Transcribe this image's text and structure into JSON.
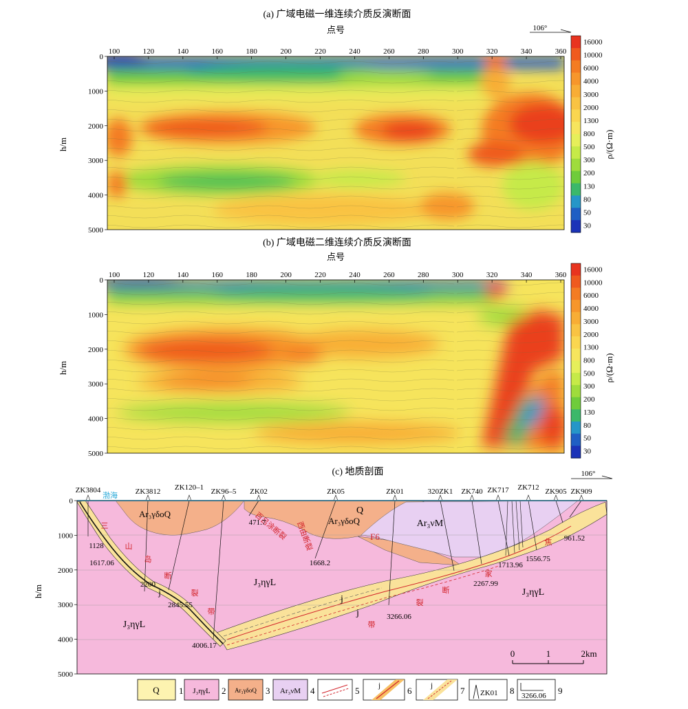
{
  "panel_a": {
    "title": "(a) 广域电磁一维连续介质反演断面",
    "xlabel": "点号",
    "orientation": "106°"
  },
  "panel_b": {
    "title": "(b) 广域电磁二维连续介质反演断面",
    "xlabel": "点号"
  },
  "panel_c": {
    "title": "(c) 地质剖面",
    "orientation": "106°",
    "scale": {
      "ticks": [
        "0",
        "1",
        "2km"
      ]
    },
    "boreholes": [
      "ZK3804",
      "ZK3812",
      "ZK120–1",
      "ZK96–5",
      "ZK02",
      "ZK05",
      "ZK01",
      "320ZK1",
      "ZK740",
      "ZK717",
      "ZK712",
      "ZK905",
      "ZK909"
    ],
    "depth_labels": [
      "1128",
      "1617.06",
      "2200",
      "2845.55",
      "4006.17",
      "471.7",
      "1668.2",
      "3266.06",
      "2267.99",
      "1713.96",
      "1556.75",
      "961.52"
    ],
    "unit_labels": {
      "ar_top_left": "Ar₃γδoQ",
      "ar_top_mid": "Ar₃γδoQ",
      "arvm": "Ar₃νM",
      "q": "Q",
      "j3_center": "J₃ηγL",
      "j3_left": "J₃ηγL",
      "j3_right": "J₃ηγL",
      "j_a": "j",
      "j_b": "j",
      "j_c": "j"
    },
    "place_labels": {
      "bohai": "渤海",
      "fault_f6": "F6",
      "baihe": "百吕涂断裂",
      "xiyou": "西由断裂"
    },
    "fault_chars_left": [
      "三",
      "山",
      "岛",
      "断",
      "裂",
      "带"
    ],
    "fault_chars_right": [
      "焦",
      "家",
      "断",
      "裂",
      "带"
    ],
    "ylabel": "h/m",
    "yticks": [
      "0",
      "1000",
      "2000",
      "3000",
      "4000",
      "5000"
    ]
  },
  "resistivity": {
    "ylabel": "h/m",
    "cbar_label": "ρ/(Ω·m)",
    "x_ticks": [
      100,
      120,
      140,
      160,
      180,
      200,
      220,
      240,
      260,
      280,
      300,
      320,
      340,
      360
    ],
    "y_ticks": [
      0,
      1000,
      2000,
      3000,
      4000,
      5000
    ],
    "colorbar_ticks": [
      "16000",
      "10000",
      "6000",
      "4000",
      "3000",
      "2000",
      "1300",
      "800",
      "500",
      "300",
      "200",
      "130",
      "80",
      "50",
      "30"
    ],
    "colorbar_colors": [
      "#e8341f",
      "#ef5a1e",
      "#f47c22",
      "#f7962b",
      "#f8ad35",
      "#f9c343",
      "#fad650",
      "#f7e55d",
      "#e6ef5a",
      "#c6ea48",
      "#9fdc3c",
      "#6fcc3b",
      "#3bb86a",
      "#2596c8",
      "#1f5fc4",
      "#1b33b8"
    ]
  },
  "legend": [
    {
      "symbol": "Q",
      "num": "1"
    },
    {
      "symbol": "J₃ηγL",
      "num": "2"
    },
    {
      "symbol": "Ar₃γδoQ",
      "num": "3"
    },
    {
      "symbol": "Ar₃νM",
      "num": "4"
    },
    {
      "symbol": "",
      "num": "5"
    },
    {
      "symbol": "j",
      "num": "6"
    },
    {
      "symbol": "j",
      "num": "7"
    },
    {
      "symbol": "ZK01",
      "num": "8"
    },
    {
      "symbol": "3266.06",
      "num": "9"
    }
  ]
}
